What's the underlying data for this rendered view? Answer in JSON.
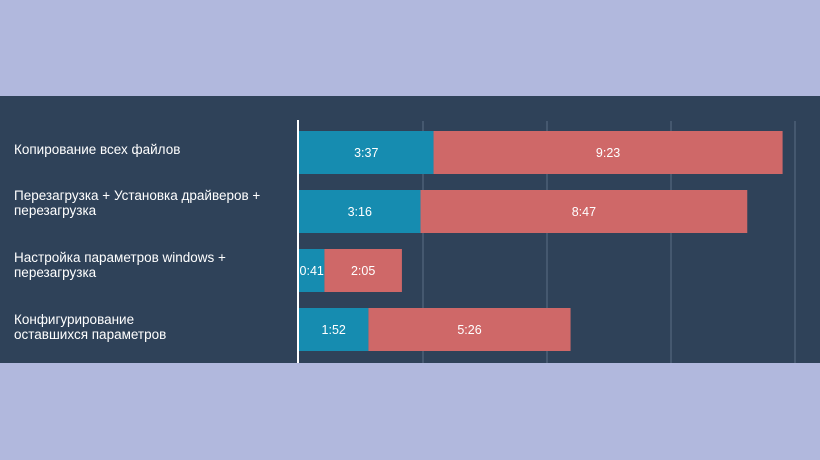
{
  "colors": {
    "page_bg": "#b1b8dd",
    "panel_bg": "#2f4259",
    "series_1": "#168cb0",
    "series_2": "#cf6868",
    "gridline": "#5b6e85",
    "axis": "#ffffff"
  },
  "chart_data": {
    "type": "bar",
    "orientation": "horizontal",
    "stacked": true,
    "categories": [
      "Копирование всех файлов",
      "Перезагрузка + Установка драйверов + перезагрузка",
      "Настройка параметров windows + перезагрузка",
      "Конфигурирование оставшихся параметров"
    ],
    "category_lines": [
      [
        "Копирование всех файлов"
      ],
      [
        "Перезагрузка + Установка драйверов +",
        "перезагрузка"
      ],
      [
        "Настройка параметров windows +",
        "перезагрузка"
      ],
      [
        "Конфигурирование",
        "оставшихся параметров"
      ]
    ],
    "series": [
      {
        "values": [
          217,
          196,
          41,
          112
        ],
        "labels": [
          "3:37",
          "3:16",
          "0:41",
          "1:52"
        ]
      },
      {
        "values": [
          563,
          527,
          125,
          326
        ],
        "labels": [
          "9:23",
          "8:47",
          "2:05",
          "5:26"
        ]
      }
    ],
    "xlim": [
      0,
      800
    ],
    "grid": true,
    "legend": "none"
  }
}
